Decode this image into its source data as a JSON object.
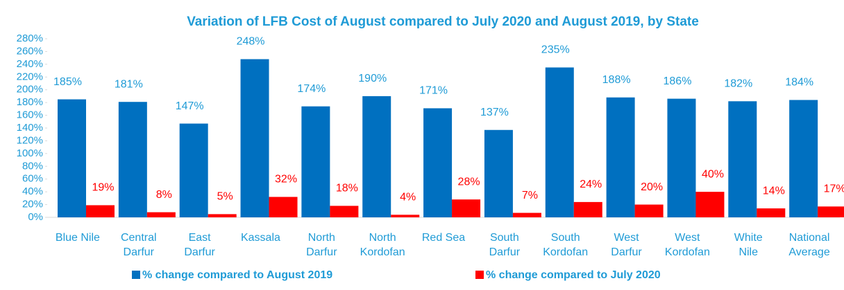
{
  "chart_data": {
    "type": "bar",
    "title": "Variation of LFB Cost of August compared to July 2020 and August 2019,  by State",
    "categories": [
      "Blue Nile",
      "Central Darfur",
      "East Darfur",
      "Kassala",
      "North Darfur",
      "North Kordofan",
      "Red Sea",
      "South Darfur",
      "South Kordofan",
      "West Darfur",
      "West Kordofan",
      "White Nile",
      "National Average"
    ],
    "series": [
      {
        "name": "% change compared to August 2019",
        "color": "#0070c0",
        "values": [
          185,
          181,
          147,
          248,
          174,
          190,
          171,
          137,
          235,
          188,
          186,
          182,
          184
        ],
        "value_labels": [
          "185%",
          "181%",
          "147%",
          "248%",
          "174%",
          "190%",
          "171%",
          "137%",
          "235%",
          "188%",
          "186%",
          "182%",
          "184%"
        ]
      },
      {
        "name": "% change compared to July 2020",
        "color": "#ff0000",
        "values": [
          19,
          8,
          5,
          32,
          18,
          4,
          28,
          7,
          24,
          20,
          40,
          14,
          17
        ],
        "value_labels": [
          "19%",
          "8%",
          "5%",
          "32%",
          "18%",
          "4%",
          "28%",
          "7%",
          "24%",
          "20%",
          "40%",
          "14%",
          "17%"
        ]
      }
    ],
    "ylim": [
      0,
      280
    ],
    "yticks": [
      {
        "value": 0,
        "label": "0%"
      },
      {
        "value": 20,
        "label": "20%"
      },
      {
        "value": 40,
        "label": "40%"
      },
      {
        "value": 60,
        "label": "60%"
      },
      {
        "value": 80,
        "label": "80%"
      },
      {
        "value": 100,
        "label": "100%"
      },
      {
        "value": 120,
        "label": "120%"
      },
      {
        "value": 140,
        "label": "140%"
      },
      {
        "value": 160,
        "label": "160%"
      },
      {
        "value": 180,
        "label": "180%"
      },
      {
        "value": 200,
        "label": "200%"
      },
      {
        "value": 220,
        "label": "220%"
      },
      {
        "value": 240,
        "label": "240%"
      },
      {
        "value": 260,
        "label": "260%"
      },
      {
        "value": 280,
        "label": "280%"
      }
    ],
    "legend": "bottom"
  }
}
